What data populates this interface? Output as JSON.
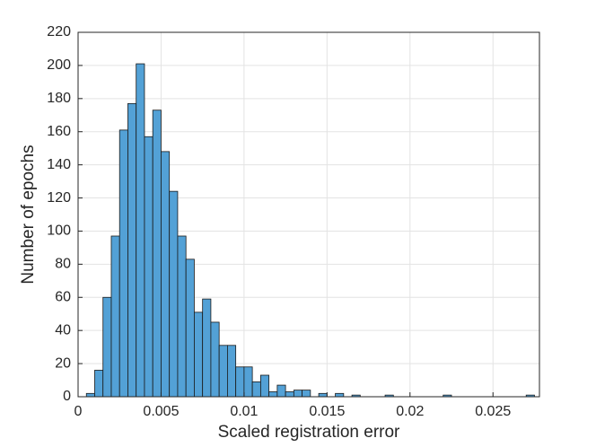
{
  "chart_data": {
    "type": "histogram",
    "x_label": "Scaled registration error",
    "y_label": "Number of epochs",
    "bins": [
      0.0005,
      0.001,
      0.0015,
      0.002,
      0.0025,
      0.003,
      0.0035,
      0.004,
      0.0045,
      0.005,
      0.0055,
      0.006,
      0.0065,
      0.007,
      0.0075,
      0.008,
      0.0085,
      0.009,
      0.0095,
      0.01,
      0.0105,
      0.011,
      0.0115,
      0.012,
      0.0125,
      0.013,
      0.0135,
      0.014,
      0.0145,
      0.015,
      0.0155,
      0.016,
      0.0165,
      0.017,
      0.0175,
      0.018,
      0.0185,
      0.019,
      0.0195,
      0.02,
      0.0205,
      0.021,
      0.0215,
      0.022,
      0.0225,
      0.023,
      0.0235,
      0.024,
      0.0245,
      0.025,
      0.0255,
      0.026,
      0.0265,
      0.027,
      0.0275
    ],
    "values": [
      2,
      16,
      60,
      97,
      161,
      177,
      201,
      157,
      173,
      148,
      124,
      97,
      83,
      51,
      59,
      45,
      31,
      31,
      18,
      18,
      9,
      13,
      3,
      7,
      3,
      4,
      4,
      0,
      2,
      0,
      2,
      0,
      1,
      0,
      0,
      0,
      1,
      0,
      0,
      0,
      0,
      0,
      0,
      1,
      0,
      0,
      0,
      0,
      0,
      0,
      0,
      0,
      0,
      1
    ],
    "color": "#53a1d6",
    "edge_color": "#1a1a1a",
    "xlim": [
      0,
      0.0278
    ],
    "ylim": [
      0,
      220
    ],
    "xticks": [
      0,
      0.005,
      0.01,
      0.015,
      0.02,
      0.025
    ],
    "yticks": [
      0,
      20,
      40,
      60,
      80,
      100,
      120,
      140,
      160,
      180,
      200,
      220
    ],
    "grid": true
  }
}
